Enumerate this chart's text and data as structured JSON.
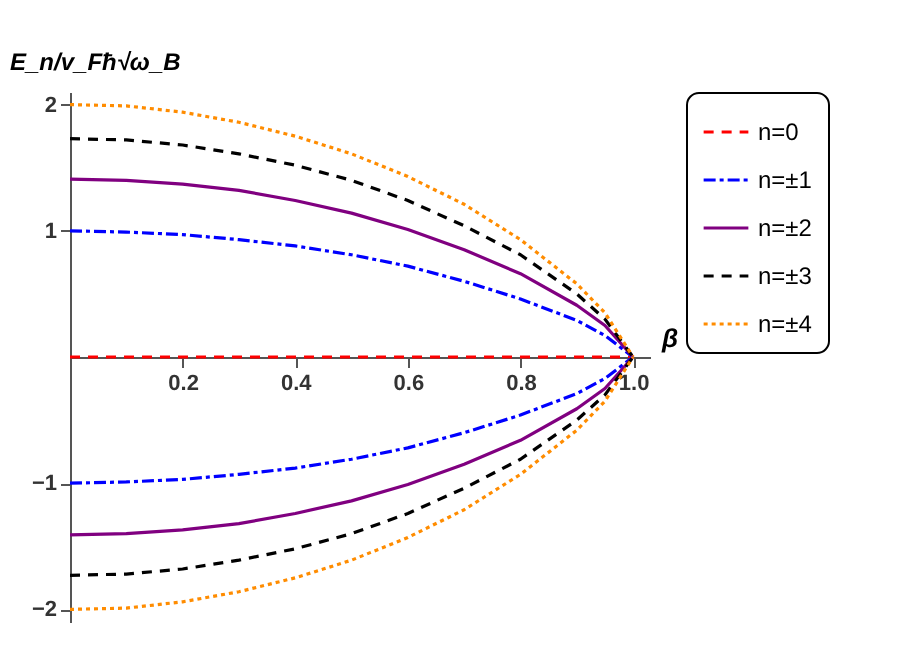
{
  "chart_data": {
    "type": "line",
    "xlabel": "β",
    "ylabel": "E_n/v_Fħ√ω_B",
    "x": [
      0,
      0.1,
      0.2,
      0.3,
      0.4,
      0.5,
      0.6,
      0.7,
      0.8,
      0.9,
      0.95,
      1
    ],
    "series": [
      {
        "name": "n=0",
        "color": "#ff0000",
        "line_style": "dashed",
        "values": [
          0,
          0,
          0,
          0,
          0,
          0,
          0,
          0,
          0,
          0,
          0,
          0
        ]
      },
      {
        "name": "n=±1",
        "color": "#0000ff",
        "line_style": "dashdot",
        "values": [
          1,
          0.99,
          0.97,
          0.93,
          0.88,
          0.81,
          0.72,
          0.6,
          0.46,
          0.29,
          0.17,
          0
        ]
      },
      {
        "name": "n=±2",
        "color": "#800080",
        "line_style": "solid",
        "values": [
          1.41,
          1.4,
          1.37,
          1.32,
          1.24,
          1.14,
          1.01,
          0.85,
          0.66,
          0.41,
          0.25,
          0
        ]
      },
      {
        "name": "n=±3",
        "color": "#000000",
        "line_style": "dashed",
        "values": [
          1.73,
          1.72,
          1.68,
          1.61,
          1.52,
          1.4,
          1.24,
          1.04,
          0.81,
          0.5,
          0.3,
          0
        ]
      },
      {
        "name": "n=±4",
        "color": "#ff8c00",
        "line_style": "dotted",
        "values": [
          2,
          1.99,
          1.94,
          1.86,
          1.75,
          1.61,
          1.43,
          1.21,
          0.93,
          0.58,
          0.35,
          0
        ]
      },
      {
        "color": "#0000ff",
        "line_style": "dashdot",
        "values": [
          -1,
          -0.99,
          -0.97,
          -0.93,
          -0.88,
          -0.81,
          -0.72,
          -0.6,
          -0.46,
          -0.29,
          -0.17,
          0
        ]
      },
      {
        "color": "#800080",
        "line_style": "solid",
        "values": [
          -1.41,
          -1.4,
          -1.37,
          -1.32,
          -1.24,
          -1.14,
          -1.01,
          -0.85,
          -0.66,
          -0.41,
          -0.25,
          0
        ]
      },
      {
        "color": "#000000",
        "line_style": "dashed",
        "values": [
          -1.73,
          -1.72,
          -1.68,
          -1.61,
          -1.52,
          -1.4,
          -1.24,
          -1.04,
          -0.81,
          -0.5,
          -0.3,
          0
        ]
      },
      {
        "color": "#ff8c00",
        "line_style": "dotted",
        "values": [
          -2,
          -1.99,
          -1.94,
          -1.86,
          -1.75,
          -1.61,
          -1.43,
          -1.21,
          -0.93,
          -0.58,
          -0.35,
          0
        ]
      }
    ],
    "xlim": [
      0,
      1.03
    ],
    "ylim": [
      -2.1,
      2.1
    ],
    "xticks": [
      0.2,
      0.4,
      0.6,
      0.8,
      {
        "value": 1,
        "label": "1.0"
      }
    ],
    "yticks": [
      {
        "value": -2,
        "label": "−2"
      },
      {
        "value": -1,
        "label": "−1"
      },
      1,
      2
    ],
    "grid": false,
    "legend": "right",
    "marker": "none"
  }
}
